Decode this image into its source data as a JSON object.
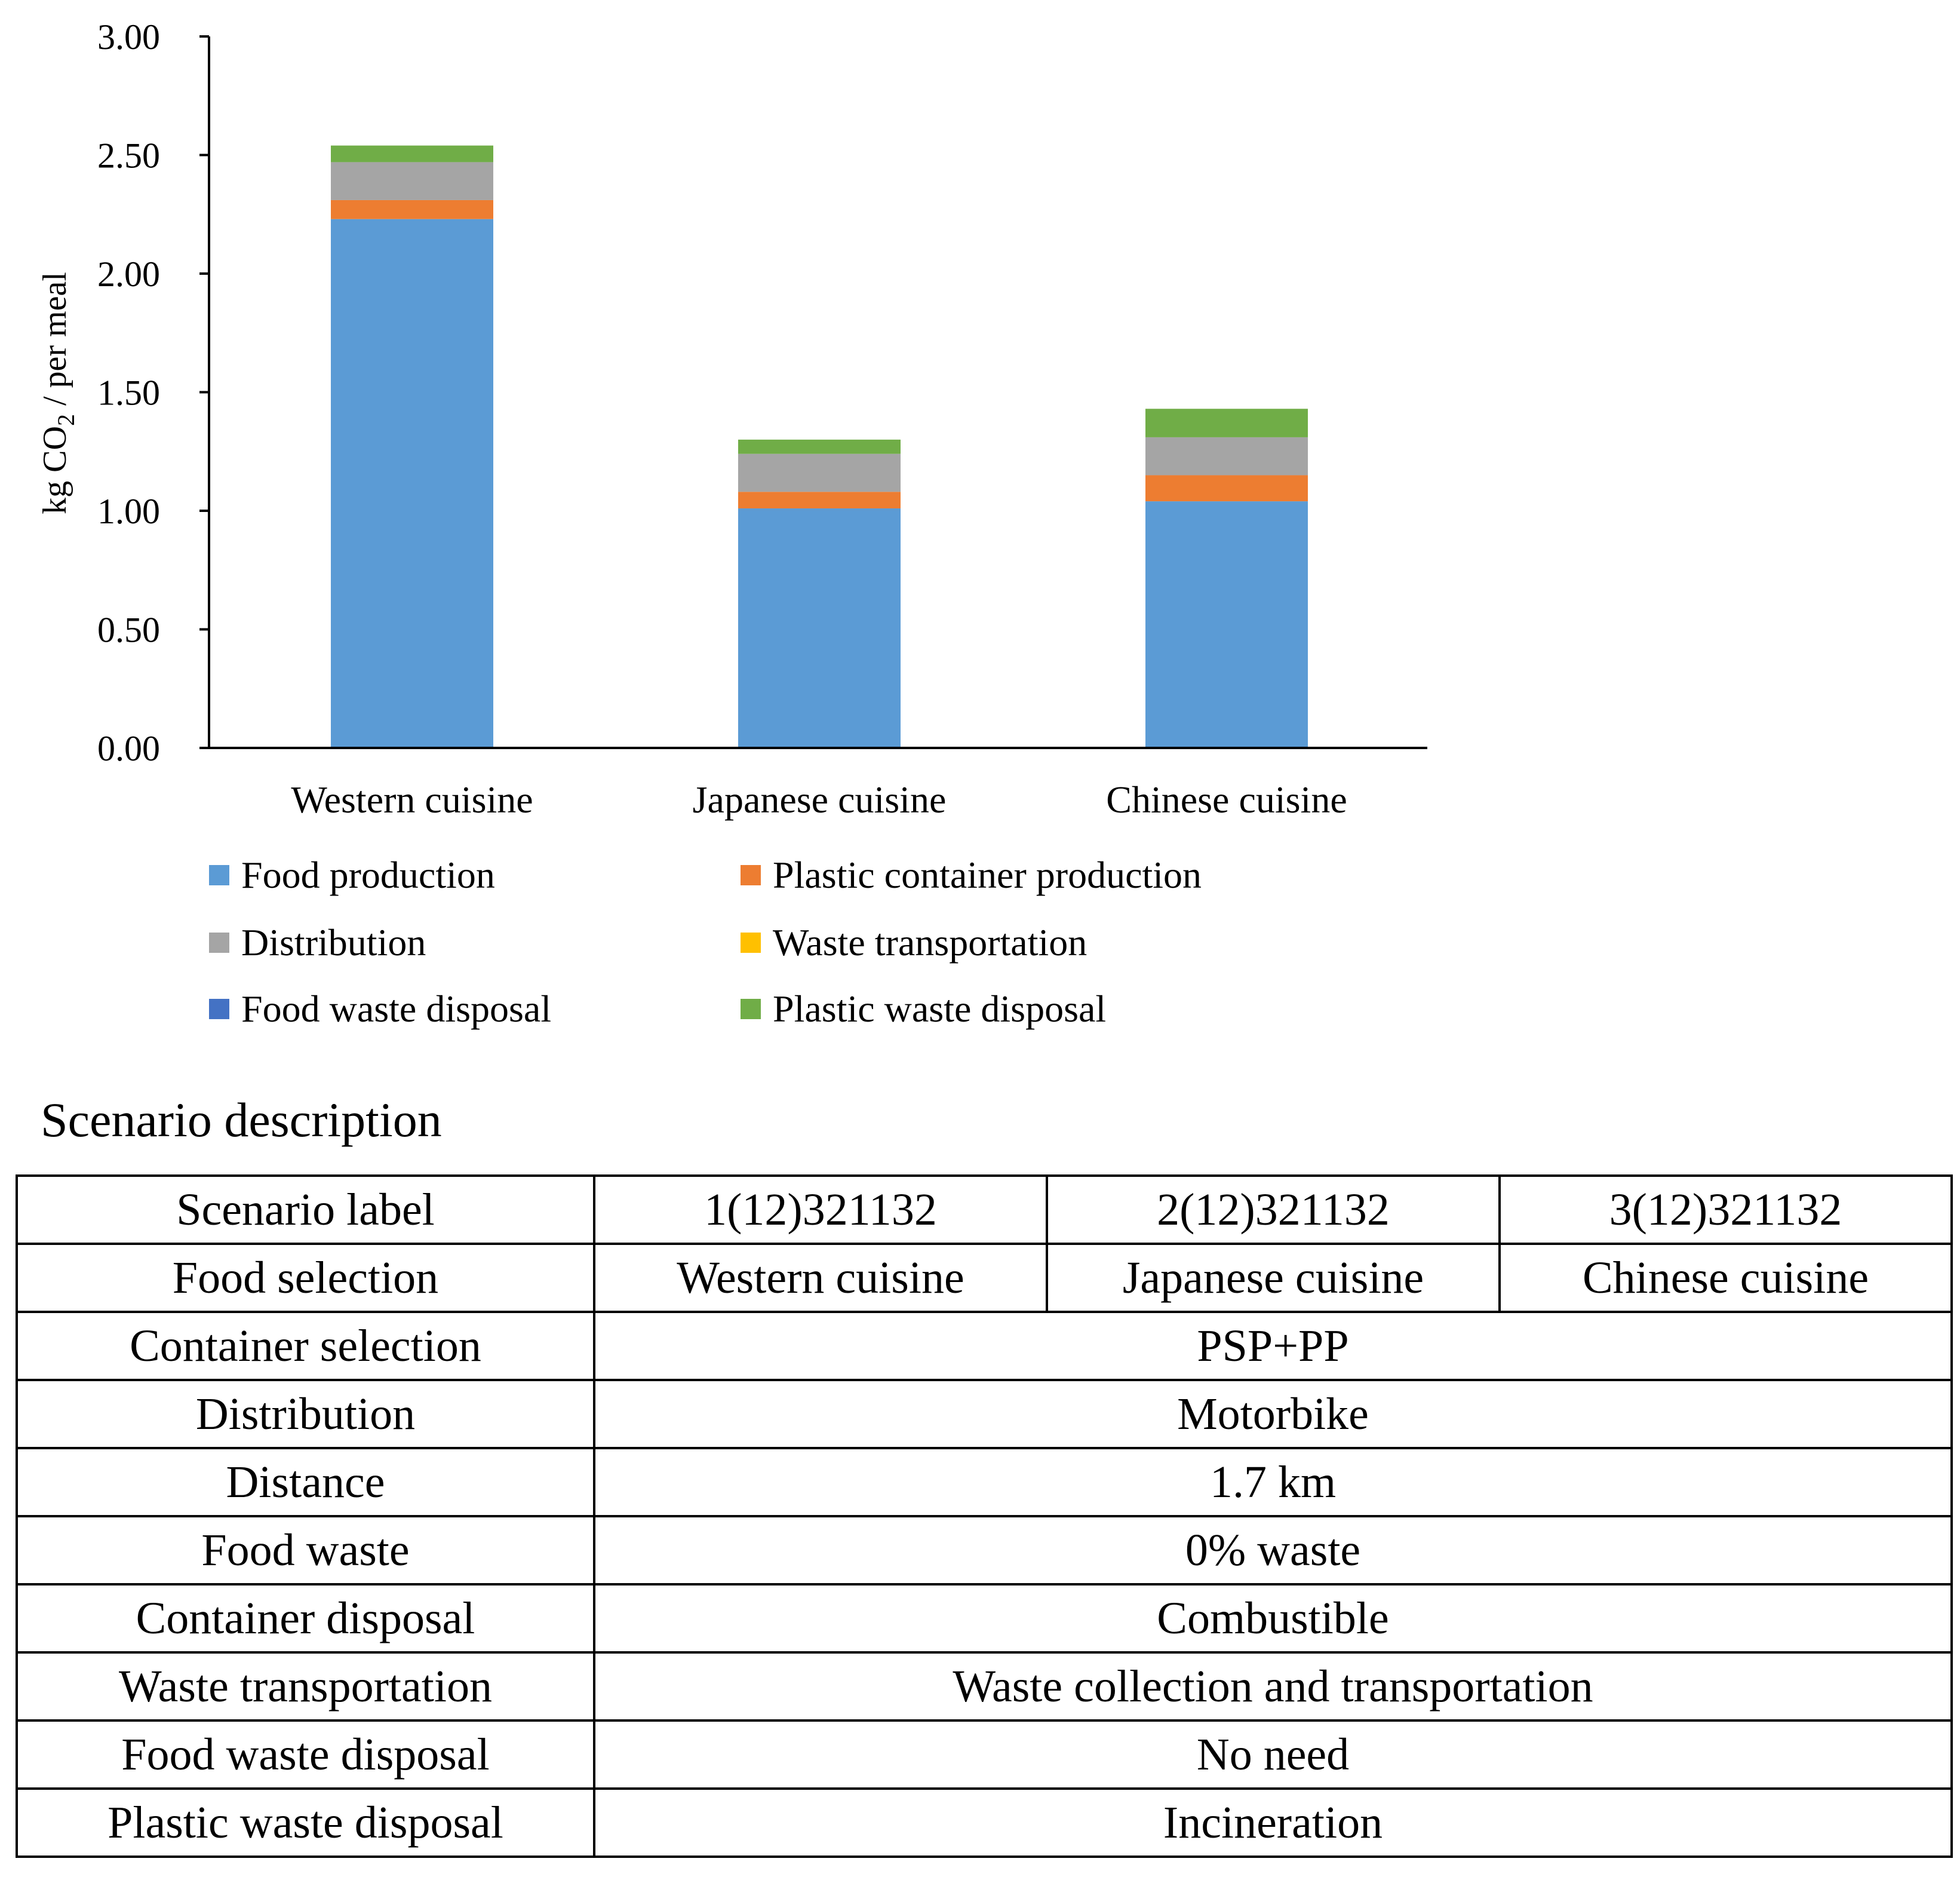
{
  "chart_data": {
    "type": "bar",
    "stacked": true,
    "categories": [
      "Western cuisine",
      "Japanese cuisine",
      "Chinese cuisine"
    ],
    "series": [
      {
        "name": "Food production",
        "color": "#5B9BD5",
        "values": [
          2.23,
          1.01,
          1.04
        ]
      },
      {
        "name": "Plastic container production",
        "color": "#ED7D31",
        "values": [
          0.08,
          0.07,
          0.11
        ]
      },
      {
        "name": "Distribution",
        "color": "#A5A5A5",
        "values": [
          0.16,
          0.16,
          0.16
        ]
      },
      {
        "name": "Waste transportation",
        "color": "#FFC000",
        "values": [
          0.0,
          0.0,
          0.0
        ]
      },
      {
        "name": "Food waste disposal",
        "color": "#4472C4",
        "values": [
          0.0,
          0.0,
          0.0
        ]
      },
      {
        "name": "Plastic waste disposal",
        "color": "#70AD47",
        "values": [
          0.07,
          0.06,
          0.12
        ]
      }
    ],
    "ylabel": "kg CO2 / per meal",
    "ylim": [
      0,
      3
    ],
    "yticks": [
      "0.00",
      "0.50",
      "1.00",
      "1.50",
      "2.00",
      "2.50",
      "3.00"
    ],
    "grid": false,
    "legend": "bottom"
  },
  "scenario": {
    "title": "Scenario description",
    "header": {
      "label": "Scenario label",
      "values": [
        "1(12)321132",
        "2(12)321132",
        "3(12)321132"
      ]
    },
    "food_selection": {
      "label": "Food selection",
      "values": [
        "Western cuisine",
        "Japanese cuisine",
        "Chinese cuisine"
      ]
    },
    "rows": [
      {
        "label": "Container selection",
        "value": "PSP+PP"
      },
      {
        "label": "Distribution",
        "value": "Motorbike"
      },
      {
        "label": "Distance",
        "value": "1.7 km"
      },
      {
        "label": "Food waste",
        "value": "0% waste"
      },
      {
        "label": "Container disposal",
        "value": "Combustible"
      },
      {
        "label": "Waste transportation",
        "value": "Waste collection and transportation"
      },
      {
        "label": "Food waste disposal",
        "value": "No need"
      },
      {
        "label": "Plastic waste disposal",
        "value": "Incineration"
      }
    ]
  }
}
